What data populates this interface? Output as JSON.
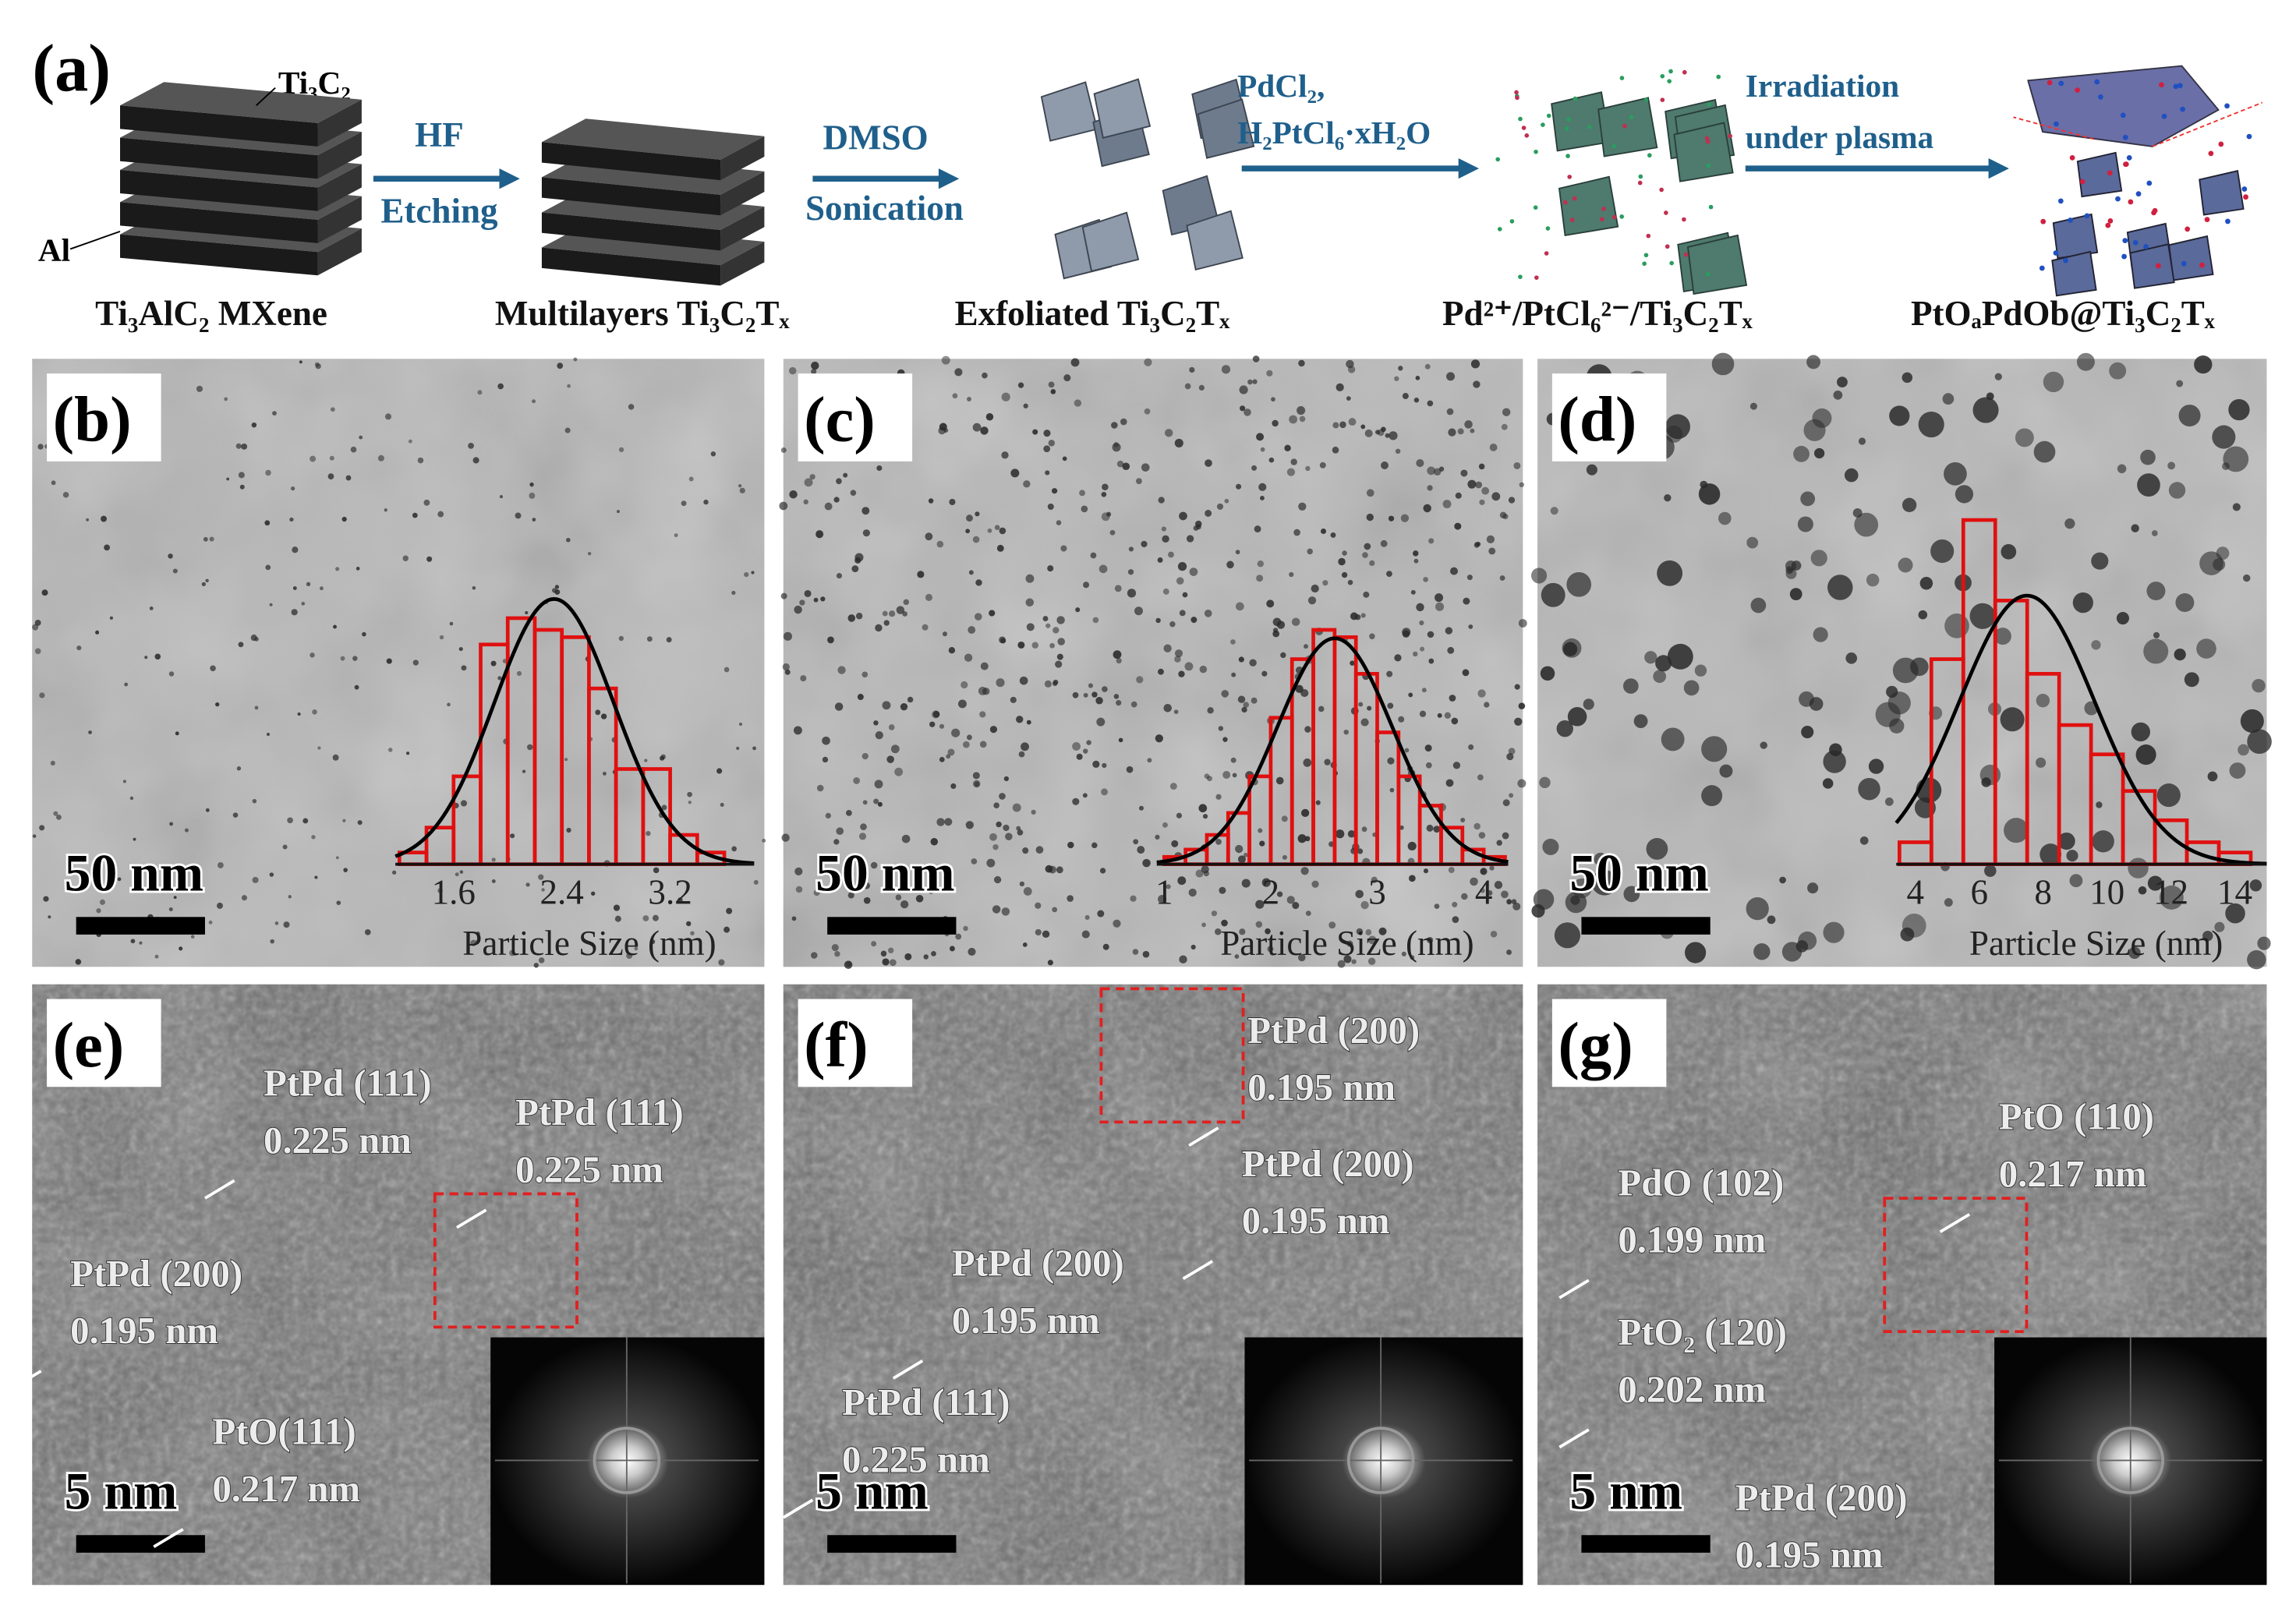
{
  "panel_a": {
    "label": "(a)",
    "layer_label": "Ti₃C₂",
    "al_label": "Al",
    "arrows": [
      [
        "HF",
        "Etching"
      ],
      [
        "DMSO",
        "Sonication"
      ],
      [
        "PdCl₂,",
        "H₂PtCl₆·xH₂O"
      ],
      [
        "Irradiation",
        "under plasma"
      ]
    ],
    "captions": [
      "Ti₃AlC₂  MXene",
      "Multilayers Ti₃C₂Tₓ",
      "Exfoliated Ti₃C₂Tₓ",
      "Pd²⁺/PtCl₆²⁻/Ti₃C₂Tₓ",
      "PtOₐPdOb@Ti₃C₂Tₓ"
    ]
  },
  "panels": [
    {
      "label": "(b)",
      "scale_bar": "50 nm",
      "histogram": {
        "xlabel": "Particle Size (nm)",
        "xlim": [
          1.17,
          3.82
        ],
        "xticks": [
          1.6,
          2.4,
          3.2
        ],
        "bins": [
          1.2,
          1.4,
          1.6,
          1.8,
          2.0,
          2.2,
          2.4,
          2.6,
          2.8,
          3.0,
          3.2,
          3.4,
          3.6
        ],
        "counts": [
          8,
          25,
          60,
          150,
          168,
          160,
          155,
          120,
          65,
          65,
          20,
          8
        ]
      }
    },
    {
      "label": "(c)",
      "scale_bar": "50 nm",
      "histogram": {
        "xlabel": "Particle Size (nm)",
        "xlim": [
          0.93,
          4.23
        ],
        "xticks": [
          1,
          2,
          3,
          4
        ],
        "bins": [
          1.0,
          1.2,
          1.4,
          1.6,
          1.8,
          2.0,
          2.2,
          2.4,
          2.6,
          2.8,
          3.0,
          3.2,
          3.4,
          3.6,
          3.8,
          4.0,
          4.2
        ],
        "counts": [
          5,
          10,
          20,
          35,
          60,
          100,
          140,
          160,
          155,
          130,
          90,
          60,
          40,
          25,
          10,
          5
        ]
      }
    },
    {
      "label": "(d)",
      "scale_bar": "50 nm",
      "histogram": {
        "xlabel": "Particle Size (nm)",
        "xlim": [
          3.4,
          15
        ],
        "xticks": [
          4,
          6,
          8,
          10,
          12,
          14
        ],
        "bins": [
          3.5,
          4.5,
          5.5,
          6.5,
          7.5,
          8.5,
          9.5,
          10.5,
          11.5,
          12.5,
          13.5,
          14.5
        ],
        "counts": [
          15,
          140,
          235,
          180,
          130,
          95,
          75,
          50,
          30,
          15,
          8
        ]
      }
    },
    {
      "label": "(e)",
      "scale_bar": "5 nm",
      "annotations": [
        [
          "PtPd (111)",
          "0.225 nm"
        ],
        [
          "PtPd (111)",
          "0.225 nm"
        ],
        [
          "PtPd (200)",
          "0.195 nm"
        ],
        [
          "PtO(111)",
          "0.217 nm"
        ]
      ]
    },
    {
      "label": "(f)",
      "scale_bar": "5 nm",
      "annotations": [
        [
          "PtPd (200)",
          "0.195 nm"
        ],
        [
          "PtPd (200)",
          "0.195 nm"
        ],
        [
          "PtPd (200)",
          "0.195 nm"
        ],
        [
          "PtPd (111)",
          "0.225 nm"
        ]
      ]
    },
    {
      "label": "(g)",
      "scale_bar": "5 nm",
      "annotations": [
        [
          "PtO (110)",
          "0.217 nm"
        ],
        [
          "PdO (102)",
          "0.199 nm"
        ],
        [
          "PtO₂ (120)",
          "0.202 nm"
        ],
        [
          "PtPd (200)",
          "0.195 nm"
        ]
      ]
    }
  ]
}
